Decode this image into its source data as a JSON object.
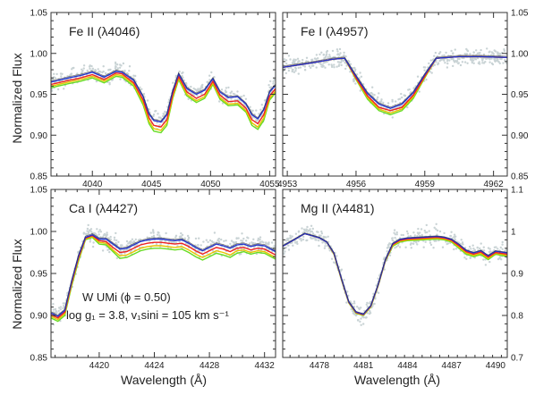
{
  "colors": {
    "obs": "#c9d3d5",
    "model_green": "#66dd22",
    "model_yellow": "#e8c400",
    "model_red": "#ee2222",
    "model_blue": "#2233cc",
    "model_dark": "#333333"
  },
  "figure": {
    "ylabel": "Normalized Flux",
    "xlabel": "Wavelength (Å)",
    "annotation_line1": "W UMi (ϕ = 0.50)",
    "annotation_line2": "log g₁ = 3.8, v₁sini = 105 km s⁻¹"
  },
  "chart_data": [
    {
      "type": "line",
      "title": "Fe II (λ4046)",
      "xlim": [
        4036.5,
        4055.5
      ],
      "ylim": [
        0.85,
        1.05
      ],
      "xticks": [
        4040,
        4045,
        4050,
        4055
      ],
      "yticks": [
        0.85,
        0.9,
        0.95,
        1.0,
        1.05
      ],
      "xtick_labels": [
        "4040",
        "4045",
        "4050",
        "4055"
      ],
      "ytick_labels": [
        "0.85",
        "0.90",
        "0.95",
        "1.00",
        "1.05"
      ],
      "x": [
        4036.5,
        4038.0,
        4039.0,
        4040.0,
        4041.0,
        4042.0,
        4042.5,
        4043.5,
        4044.3,
        4044.8,
        4045.2,
        4045.8,
        4046.3,
        4046.8,
        4047.3,
        4048.0,
        4048.8,
        4049.5,
        4050.2,
        4050.8,
        4051.5,
        4052.3,
        4053.0,
        4053.5,
        4054.0,
        4054.5,
        4055.0,
        4055.5
      ],
      "series": [
        {
          "values": [
            0.958,
            0.963,
            0.966,
            0.97,
            0.964,
            0.972,
            0.971,
            0.96,
            0.937,
            0.914,
            0.905,
            0.903,
            0.912,
            0.945,
            0.968,
            0.948,
            0.94,
            0.945,
            0.962,
            0.944,
            0.936,
            0.937,
            0.928,
            0.912,
            0.907,
            0.918,
            0.943,
            0.952
          ]
        },
        {
          "values": [
            0.96,
            0.965,
            0.968,
            0.972,
            0.966,
            0.974,
            0.973,
            0.962,
            0.94,
            0.917,
            0.908,
            0.906,
            0.915,
            0.947,
            0.97,
            0.95,
            0.942,
            0.947,
            0.964,
            0.946,
            0.938,
            0.939,
            0.93,
            0.915,
            0.91,
            0.921,
            0.945,
            0.954
          ]
        },
        {
          "values": [
            0.962,
            0.967,
            0.97,
            0.974,
            0.968,
            0.976,
            0.975,
            0.964,
            0.943,
            0.921,
            0.912,
            0.91,
            0.919,
            0.95,
            0.972,
            0.953,
            0.945,
            0.95,
            0.966,
            0.949,
            0.941,
            0.942,
            0.933,
            0.919,
            0.914,
            0.925,
            0.948,
            0.957
          ]
        },
        {
          "values": [
            0.965,
            0.97,
            0.973,
            0.977,
            0.971,
            0.978,
            0.977,
            0.967,
            0.947,
            0.926,
            0.918,
            0.916,
            0.925,
            0.954,
            0.975,
            0.957,
            0.95,
            0.955,
            0.969,
            0.953,
            0.946,
            0.947,
            0.938,
            0.925,
            0.92,
            0.931,
            0.953,
            0.961
          ]
        }
      ]
    },
    {
      "type": "line",
      "title": "Fe I (λ4957)",
      "xlim": [
        4952.8,
        4962.6
      ],
      "ylim": [
        0.85,
        1.05
      ],
      "xticks": [
        4953,
        4956,
        4959,
        4962
      ],
      "yticks": [
        0.85,
        0.9,
        0.95,
        1.0,
        1.05
      ],
      "xtick_labels": [
        "4953",
        "4956",
        "4959",
        "4962"
      ],
      "ytick_labels": [
        "0.85",
        "0.90",
        "0.95",
        "1.00",
        "1.05"
      ],
      "x": [
        4952.8,
        4954.0,
        4955.0,
        4955.5,
        4956.0,
        4956.5,
        4957.0,
        4957.5,
        4958.0,
        4958.5,
        4959.0,
        4959.5,
        4960.5,
        4961.5,
        4962.6
      ],
      "series": [
        {
          "values": [
            0.983,
            0.988,
            0.993,
            0.994,
            0.968,
            0.944,
            0.93,
            0.925,
            0.93,
            0.945,
            0.97,
            0.994,
            0.996,
            0.996,
            0.995
          ]
        },
        {
          "values": [
            0.983,
            0.988,
            0.993,
            0.994,
            0.969,
            0.946,
            0.932,
            0.927,
            0.932,
            0.947,
            0.971,
            0.994,
            0.996,
            0.996,
            0.995
          ]
        },
        {
          "values": [
            0.983,
            0.988,
            0.993,
            0.994,
            0.97,
            0.948,
            0.934,
            0.93,
            0.934,
            0.949,
            0.972,
            0.994,
            0.996,
            0.996,
            0.995
          ]
        },
        {
          "values": [
            0.983,
            0.988,
            0.993,
            0.994,
            0.972,
            0.951,
            0.938,
            0.933,
            0.938,
            0.952,
            0.974,
            0.994,
            0.996,
            0.996,
            0.995
          ]
        }
      ]
    },
    {
      "type": "line",
      "title": "Ca I (λ4427)",
      "xlim": [
        4416.5,
        4432.8
      ],
      "ylim": [
        0.85,
        1.05
      ],
      "xticks": [
        4420,
        4424,
        4428,
        4432
      ],
      "yticks": [
        0.85,
        0.9,
        0.95,
        1.0,
        1.05
      ],
      "xtick_labels": [
        "4420",
        "4424",
        "4428",
        "4432"
      ],
      "ytick_labels": [
        "0.85",
        "0.90",
        "0.95",
        "1.00",
        "1.05"
      ],
      "x": [
        4416.5,
        4417.0,
        4417.5,
        4418.0,
        4418.5,
        4419.0,
        4419.5,
        4420.0,
        4420.5,
        4421.0,
        4421.5,
        4422.0,
        4422.5,
        4423.0,
        4423.5,
        4424.0,
        4424.5,
        4425.0,
        4425.5,
        4426.0,
        4426.5,
        4427.0,
        4427.5,
        4428.0,
        4428.5,
        4429.0,
        4429.5,
        4430.0,
        4430.5,
        4431.0,
        4431.5,
        4432.0,
        4432.8
      ],
      "series": [
        {
          "values": [
            0.897,
            0.893,
            0.9,
            0.935,
            0.965,
            0.99,
            0.993,
            0.985,
            0.984,
            0.976,
            0.968,
            0.969,
            0.973,
            0.977,
            0.979,
            0.98,
            0.98,
            0.979,
            0.978,
            0.979,
            0.975,
            0.97,
            0.966,
            0.97,
            0.974,
            0.972,
            0.969,
            0.974,
            0.976,
            0.973,
            0.975,
            0.974,
            0.967
          ]
        },
        {
          "values": [
            0.899,
            0.895,
            0.902,
            0.937,
            0.967,
            0.991,
            0.994,
            0.987,
            0.986,
            0.978,
            0.971,
            0.972,
            0.976,
            0.98,
            0.982,
            0.983,
            0.983,
            0.982,
            0.981,
            0.982,
            0.978,
            0.973,
            0.969,
            0.973,
            0.977,
            0.975,
            0.972,
            0.977,
            0.978,
            0.975,
            0.977,
            0.976,
            0.969
          ]
        },
        {
          "values": [
            0.901,
            0.897,
            0.904,
            0.939,
            0.969,
            0.992,
            0.995,
            0.989,
            0.988,
            0.981,
            0.975,
            0.976,
            0.98,
            0.984,
            0.986,
            0.987,
            0.987,
            0.986,
            0.985,
            0.986,
            0.982,
            0.977,
            0.973,
            0.977,
            0.981,
            0.979,
            0.976,
            0.98,
            0.981,
            0.978,
            0.98,
            0.979,
            0.972
          ]
        },
        {
          "values": [
            0.903,
            0.899,
            0.906,
            0.941,
            0.971,
            0.993,
            0.996,
            0.991,
            0.991,
            0.985,
            0.979,
            0.98,
            0.984,
            0.988,
            0.99,
            0.991,
            0.991,
            0.99,
            0.989,
            0.99,
            0.986,
            0.981,
            0.977,
            0.981,
            0.985,
            0.983,
            0.98,
            0.984,
            0.985,
            0.982,
            0.984,
            0.983,
            0.976
          ]
        }
      ]
    },
    {
      "type": "line",
      "title": "Mg II (λ4481)",
      "xlim": [
        4475.5,
        4490.8
      ],
      "ylim": [
        0.7,
        1.1
      ],
      "xticks": [
        4478,
        4481,
        4484,
        4487,
        4490
      ],
      "yticks": [
        0.7,
        0.8,
        0.9,
        1.0,
        1.1
      ],
      "xtick_labels": [
        "4478",
        "4481",
        "4484",
        "4487",
        "4490"
      ],
      "ytick_labels": [
        "0.7",
        "0.8",
        "0.9",
        "1",
        "1.1"
      ],
      "x": [
        4475.5,
        4476.5,
        4477.0,
        4477.5,
        4478.0,
        4478.5,
        4479.0,
        4479.5,
        4480.0,
        4480.5,
        4481.0,
        4481.5,
        4482.0,
        4482.5,
        4483.0,
        4483.5,
        4484.0,
        4485.0,
        4486.0,
        4486.5,
        4487.0,
        4487.5,
        4488.0,
        4488.5,
        4489.0,
        4489.5,
        4490.0,
        4490.8
      ],
      "series": [
        {
          "values": [
            0.965,
            0.985,
            0.995,
            0.99,
            0.985,
            0.975,
            0.945,
            0.885,
            0.83,
            0.805,
            0.8,
            0.82,
            0.87,
            0.93,
            0.965,
            0.975,
            0.978,
            0.98,
            0.982,
            0.98,
            0.975,
            0.96,
            0.946,
            0.94,
            0.945,
            0.933,
            0.946,
            0.94
          ]
        },
        {
          "values": [
            0.965,
            0.985,
            0.995,
            0.99,
            0.985,
            0.975,
            0.946,
            0.886,
            0.831,
            0.806,
            0.801,
            0.821,
            0.871,
            0.931,
            0.967,
            0.977,
            0.98,
            0.982,
            0.984,
            0.982,
            0.977,
            0.963,
            0.949,
            0.943,
            0.948,
            0.936,
            0.948,
            0.943
          ]
        },
        {
          "values": [
            0.965,
            0.985,
            0.995,
            0.99,
            0.985,
            0.975,
            0.947,
            0.887,
            0.832,
            0.807,
            0.802,
            0.822,
            0.872,
            0.932,
            0.969,
            0.979,
            0.982,
            0.984,
            0.986,
            0.984,
            0.979,
            0.966,
            0.952,
            0.946,
            0.951,
            0.939,
            0.95,
            0.946
          ]
        },
        {
          "values": [
            0.965,
            0.985,
            0.995,
            0.99,
            0.985,
            0.975,
            0.948,
            0.888,
            0.833,
            0.808,
            0.803,
            0.823,
            0.873,
            0.933,
            0.971,
            0.981,
            0.984,
            0.986,
            0.988,
            0.986,
            0.981,
            0.969,
            0.955,
            0.949,
            0.954,
            0.942,
            0.953,
            0.949
          ]
        }
      ]
    }
  ]
}
